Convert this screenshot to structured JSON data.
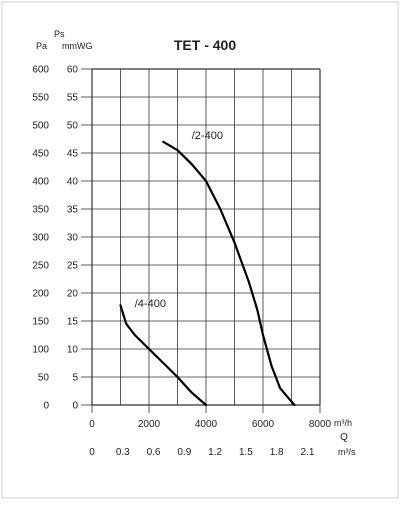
{
  "chart_data": {
    "type": "line",
    "title": "TET - 400",
    "ylabel_left_top": "Ps",
    "ylabel_pa": "Pa",
    "ylabel_mmwg": "mmWG",
    "xlabel_q": "Q",
    "x_unit_primary": "m³/h",
    "x_unit_secondary": "m³/s",
    "grid": true,
    "xlim": [
      0,
      8000
    ],
    "ylim_pa": [
      0,
      600
    ],
    "ylim_mmwg": [
      0,
      60
    ],
    "x_ticks_m3h": [
      "0",
      "2000",
      "4000",
      "6000",
      "8000"
    ],
    "x_ticks_m3s": [
      "0",
      "0.3",
      "0.6",
      "0.9",
      "1.2",
      "1.5",
      "1.8",
      "2.1"
    ],
    "y_ticks_pa": [
      "0",
      "50",
      "100",
      "150",
      "200",
      "250",
      "300",
      "350",
      "400",
      "450",
      "500",
      "550",
      "600"
    ],
    "y_ticks_mmwg": [
      "0",
      "5",
      "10",
      "15",
      "20",
      "25",
      "30",
      "35",
      "40",
      "45",
      "50",
      "55",
      "60"
    ],
    "series": [
      {
        "name": "/2-400",
        "points": [
          [
            2500,
            470
          ],
          [
            3000,
            455
          ],
          [
            3500,
            430
          ],
          [
            4000,
            400
          ],
          [
            4500,
            350
          ],
          [
            5000,
            290
          ],
          [
            5500,
            220
          ],
          [
            5800,
            170
          ],
          [
            6000,
            125
          ],
          [
            6300,
            70
          ],
          [
            6600,
            30
          ],
          [
            7100,
            0
          ]
        ],
        "label_at": [
          3500,
          475
        ]
      },
      {
        "name": "/4-400",
        "points": [
          [
            1000,
            178
          ],
          [
            1200,
            145
          ],
          [
            1500,
            125
          ],
          [
            2000,
            100
          ],
          [
            2500,
            75
          ],
          [
            3000,
            50
          ],
          [
            3500,
            22
          ],
          [
            4000,
            0
          ]
        ],
        "label_at": [
          1500,
          175
        ]
      }
    ]
  }
}
